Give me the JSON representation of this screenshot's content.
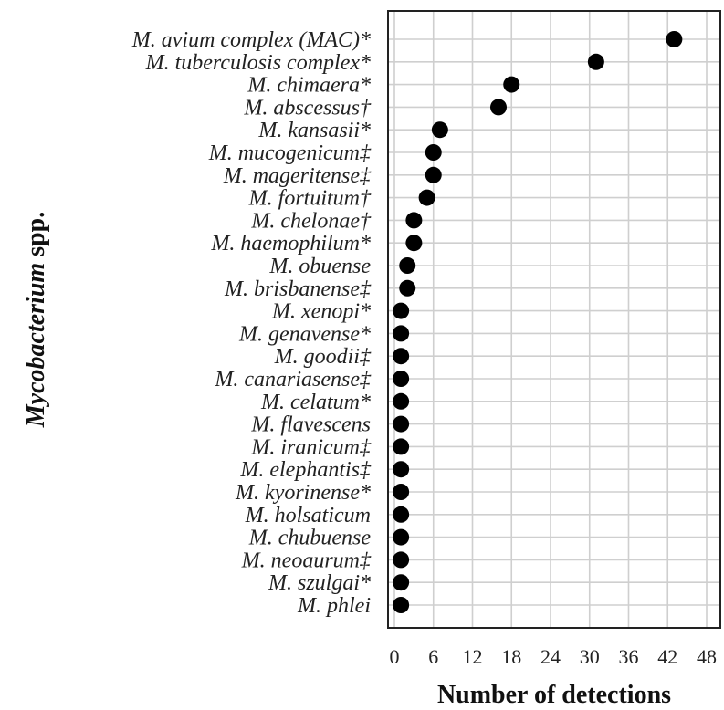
{
  "chart_data": {
    "type": "scatter",
    "orientation": "horizontal-dot",
    "xlabel": "Number of detections",
    "ylabel_italic": "Mycobacterium",
    "ylabel_suffix": " spp.",
    "xlim": [
      0,
      48
    ],
    "xticks": [
      "0",
      "6",
      "12",
      "18",
      "24",
      "30",
      "36",
      "42",
      "48"
    ],
    "grid": true,
    "categories": [
      "M. avium complex (MAC)*",
      "M. tuberculosis complex*",
      "M. chimaera*",
      "M. abscessus†",
      "M. kansasii*",
      "M. mucogenicum‡",
      "M. mageritense‡",
      "M. fortuitum†",
      "M. chelonae†",
      "M. haemophilum*",
      "M. obuense",
      "M. brisbanense‡",
      "M. xenopi*",
      "M. genavense*",
      "M. goodii‡",
      "M. canariasense‡",
      "M. celatum*",
      "M. flavescens",
      "M. iranicum‡",
      "M. elephantis‡",
      "M. kyorinense*",
      "M. holsaticum",
      "M. chubuense",
      "M. neoaurum‡",
      "M. szulgai*",
      "M. phlei"
    ],
    "values": [
      43,
      31,
      18,
      16,
      7,
      6,
      6,
      5,
      3,
      3,
      2,
      2,
      1,
      1,
      1,
      1,
      1,
      1,
      1,
      1,
      1,
      1,
      1,
      1,
      1,
      1
    ],
    "marker_color": "#000000"
  }
}
